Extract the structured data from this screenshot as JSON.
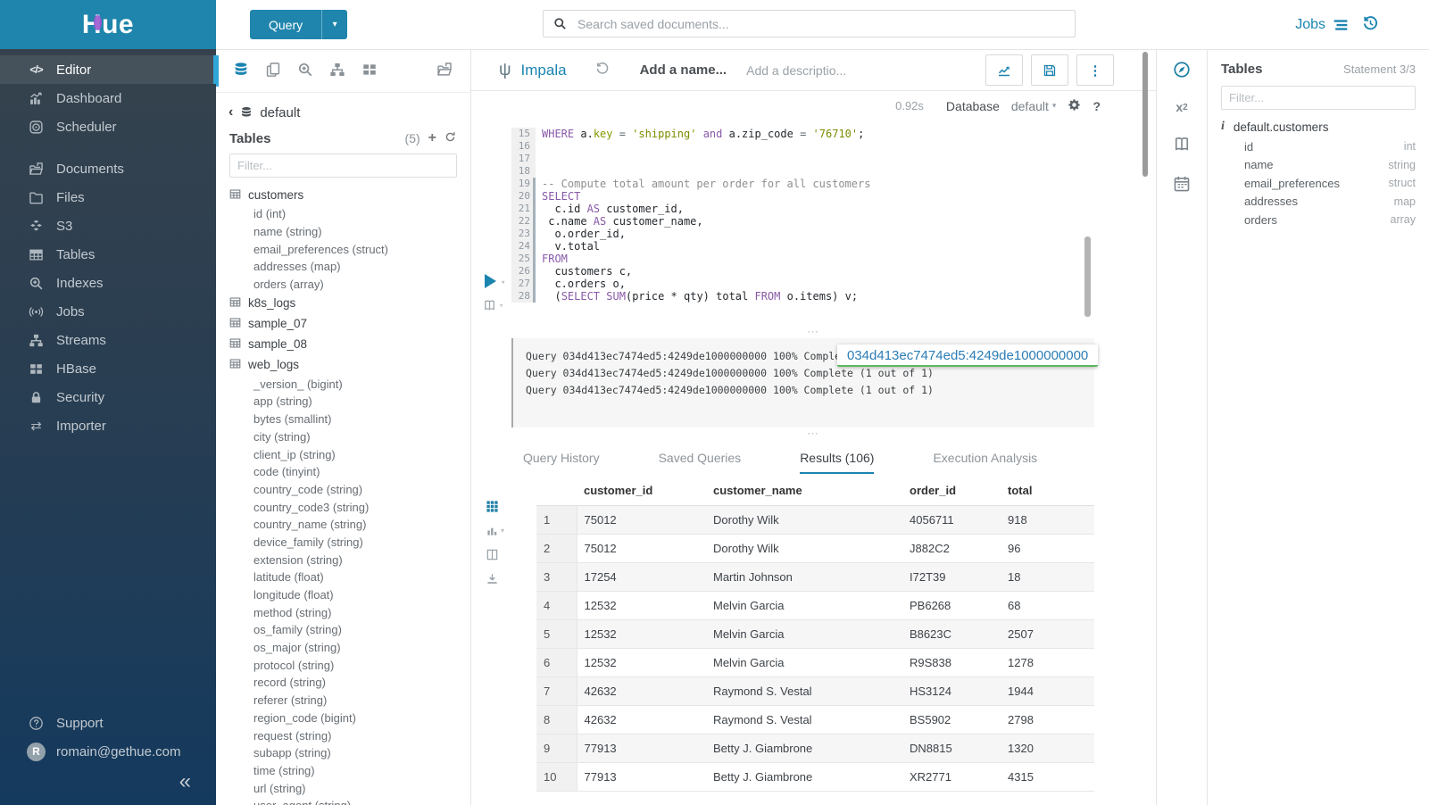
{
  "topbar": {
    "query_label": "Query",
    "search_placeholder": "Search saved documents...",
    "jobs_label": "Jobs"
  },
  "sidebar": {
    "logo_text": "Hue",
    "items": [
      {
        "label": "Editor",
        "icon": "code-icon",
        "active": true
      },
      {
        "label": "Dashboard",
        "icon": "dashboard-icon"
      },
      {
        "label": "Scheduler",
        "icon": "scheduler-icon"
      },
      {
        "label": "Documents",
        "icon": "documents-icon",
        "spacer": true
      },
      {
        "label": "Files",
        "icon": "files-icon"
      },
      {
        "label": "S3",
        "icon": "s3-icon"
      },
      {
        "label": "Tables",
        "icon": "tables-icon"
      },
      {
        "label": "Indexes",
        "icon": "indexes-icon"
      },
      {
        "label": "Jobs",
        "icon": "jobs-icon"
      },
      {
        "label": "Streams",
        "icon": "streams-icon"
      },
      {
        "label": "HBase",
        "icon": "hbase-icon"
      },
      {
        "label": "Security",
        "icon": "security-icon"
      },
      {
        "label": "Importer",
        "icon": "importer-icon"
      }
    ],
    "support_label": "Support",
    "user_email": "romain@gethue.com",
    "avatar_letter": "R",
    "collapse_glyph": "«"
  },
  "left_assist": {
    "db_name": "default",
    "tables_label": "Tables",
    "count": "(5)",
    "filter_placeholder": "Filter...",
    "tables": [
      {
        "name": "customers",
        "columns": [
          "id (int)",
          "name (string)",
          "email_preferences (struct)",
          "addresses (map)",
          "orders (array)"
        ]
      },
      {
        "name": "k8s_logs",
        "columns": []
      },
      {
        "name": "sample_07",
        "columns": []
      },
      {
        "name": "sample_08",
        "columns": []
      },
      {
        "name": "web_logs",
        "columns": [
          "_version_ (bigint)",
          "app (string)",
          "bytes (smallint)",
          "city (string)",
          "client_ip (string)",
          "code (tinyint)",
          "country_code (string)",
          "country_code3 (string)",
          "country_name (string)",
          "device_family (string)",
          "extension (string)",
          "latitude (float)",
          "longitude (float)",
          "method (string)",
          "os_family (string)",
          "os_major (string)",
          "protocol (string)",
          "record (string)",
          "referer (string)",
          "region_code (bigint)",
          "request (string)",
          "subapp (string)",
          "time (string)",
          "url (string)",
          "user_agent (string)"
        ]
      }
    ]
  },
  "editor": {
    "engine": "Impala",
    "name_placeholder": "Add a name...",
    "desc_placeholder": "Add a descriptio...",
    "exec_time": "0.92s",
    "database_label": "Database",
    "database_value": "default",
    "code_lines": [
      {
        "n": "15",
        "m": false,
        "seg": [
          [
            "WHERE",
            "k"
          ],
          [
            " a.",
            "t"
          ],
          [
            "key",
            "y"
          ],
          [
            " ",
            "t"
          ],
          [
            "=",
            "o"
          ],
          [
            " ",
            "t"
          ],
          [
            "'shipping'",
            "s"
          ],
          [
            " ",
            "t"
          ],
          [
            "and",
            "k"
          ],
          [
            " a.zip_code ",
            "t"
          ],
          [
            "=",
            "o"
          ],
          [
            " ",
            "t"
          ],
          [
            "'76710'",
            "s"
          ],
          [
            ";",
            "t"
          ]
        ]
      },
      {
        "n": "16",
        "m": false,
        "seg": []
      },
      {
        "n": "17",
        "m": false,
        "seg": []
      },
      {
        "n": "18",
        "m": false,
        "seg": []
      },
      {
        "n": "19",
        "m": true,
        "seg": [
          [
            "-- Compute total amount per order for all customers",
            "c"
          ]
        ]
      },
      {
        "n": "20",
        "m": true,
        "seg": [
          [
            "SELECT",
            "k"
          ]
        ]
      },
      {
        "n": "21",
        "m": true,
        "seg": [
          [
            "  c.id ",
            "t"
          ],
          [
            "AS",
            "k"
          ],
          [
            " customer_id,",
            "t"
          ]
        ]
      },
      {
        "n": "22",
        "m": true,
        "seg": [
          [
            " c.name ",
            "t"
          ],
          [
            "AS",
            "k"
          ],
          [
            " customer_name,",
            "t"
          ]
        ]
      },
      {
        "n": "23",
        "m": true,
        "seg": [
          [
            "  o.order_id,",
            "t"
          ]
        ]
      },
      {
        "n": "24",
        "m": true,
        "seg": [
          [
            "  v.total",
            "t"
          ]
        ]
      },
      {
        "n": "25",
        "m": true,
        "seg": [
          [
            "FROM",
            "k"
          ]
        ]
      },
      {
        "n": "26",
        "m": true,
        "seg": [
          [
            "  customers c,",
            "t"
          ]
        ]
      },
      {
        "n": "27",
        "m": true,
        "seg": [
          [
            "  c.orders o,",
            "t"
          ]
        ]
      },
      {
        "n": "28",
        "m": true,
        "seg": [
          [
            "  (",
            "t"
          ],
          [
            "SELECT",
            "k"
          ],
          [
            " ",
            "t"
          ],
          [
            "SUM",
            "k"
          ],
          [
            "(price * qty) total ",
            "t"
          ],
          [
            "FROM",
            "k"
          ],
          [
            " o.items) v;",
            "t"
          ]
        ]
      }
    ]
  },
  "log": {
    "lines": [
      "Query 034d413ec7474ed5:4249de1000000000 100% Complete (1 out of 1)",
      "Query 034d413ec7474ed5:4249de1000000000 100% Complete (1 out of 1)",
      "Query 034d413ec7474ed5:4249de1000000000 100% Complete (1 out of 1)"
    ],
    "tooltip": "034d413ec7474ed5:4249de1000000000"
  },
  "tabs": [
    {
      "label": "Query History"
    },
    {
      "label": "Saved Queries"
    },
    {
      "label": "Results (106)",
      "active": true
    },
    {
      "label": "Execution Analysis"
    }
  ],
  "results": {
    "columns": [
      "customer_id",
      "customer_name",
      "order_id",
      "total"
    ],
    "rows": [
      [
        "1",
        "75012",
        "Dorothy Wilk",
        "4056711",
        "918"
      ],
      [
        "2",
        "75012",
        "Dorothy Wilk",
        "J882C2",
        "96"
      ],
      [
        "3",
        "17254",
        "Martin Johnson",
        "I72T39",
        "18"
      ],
      [
        "4",
        "12532",
        "Melvin Garcia",
        "PB6268",
        "68"
      ],
      [
        "5",
        "12532",
        "Melvin Garcia",
        "B8623C",
        "2507"
      ],
      [
        "6",
        "12532",
        "Melvin Garcia",
        "R9S838",
        "1278"
      ],
      [
        "7",
        "42632",
        "Raymond S. Vestal",
        "HS3124",
        "1944"
      ],
      [
        "8",
        "42632",
        "Raymond S. Vestal",
        "BS5902",
        "2798"
      ],
      [
        "9",
        "77913",
        "Betty J. Giambrone",
        "DN8815",
        "1320"
      ],
      [
        "10",
        "77913",
        "Betty J. Giambrone",
        "XR2771",
        "4315"
      ]
    ]
  },
  "right_assist": {
    "title": "Tables",
    "statement": "Statement 3/3",
    "filter_placeholder": "Filter...",
    "table_name": "default.customers",
    "columns": [
      {
        "name": "id",
        "type": "int"
      },
      {
        "name": "name",
        "type": "string"
      },
      {
        "name": "email_preferences",
        "type": "struct"
      },
      {
        "name": "addresses",
        "type": "map"
      },
      {
        "name": "orders",
        "type": "array"
      }
    ]
  }
}
